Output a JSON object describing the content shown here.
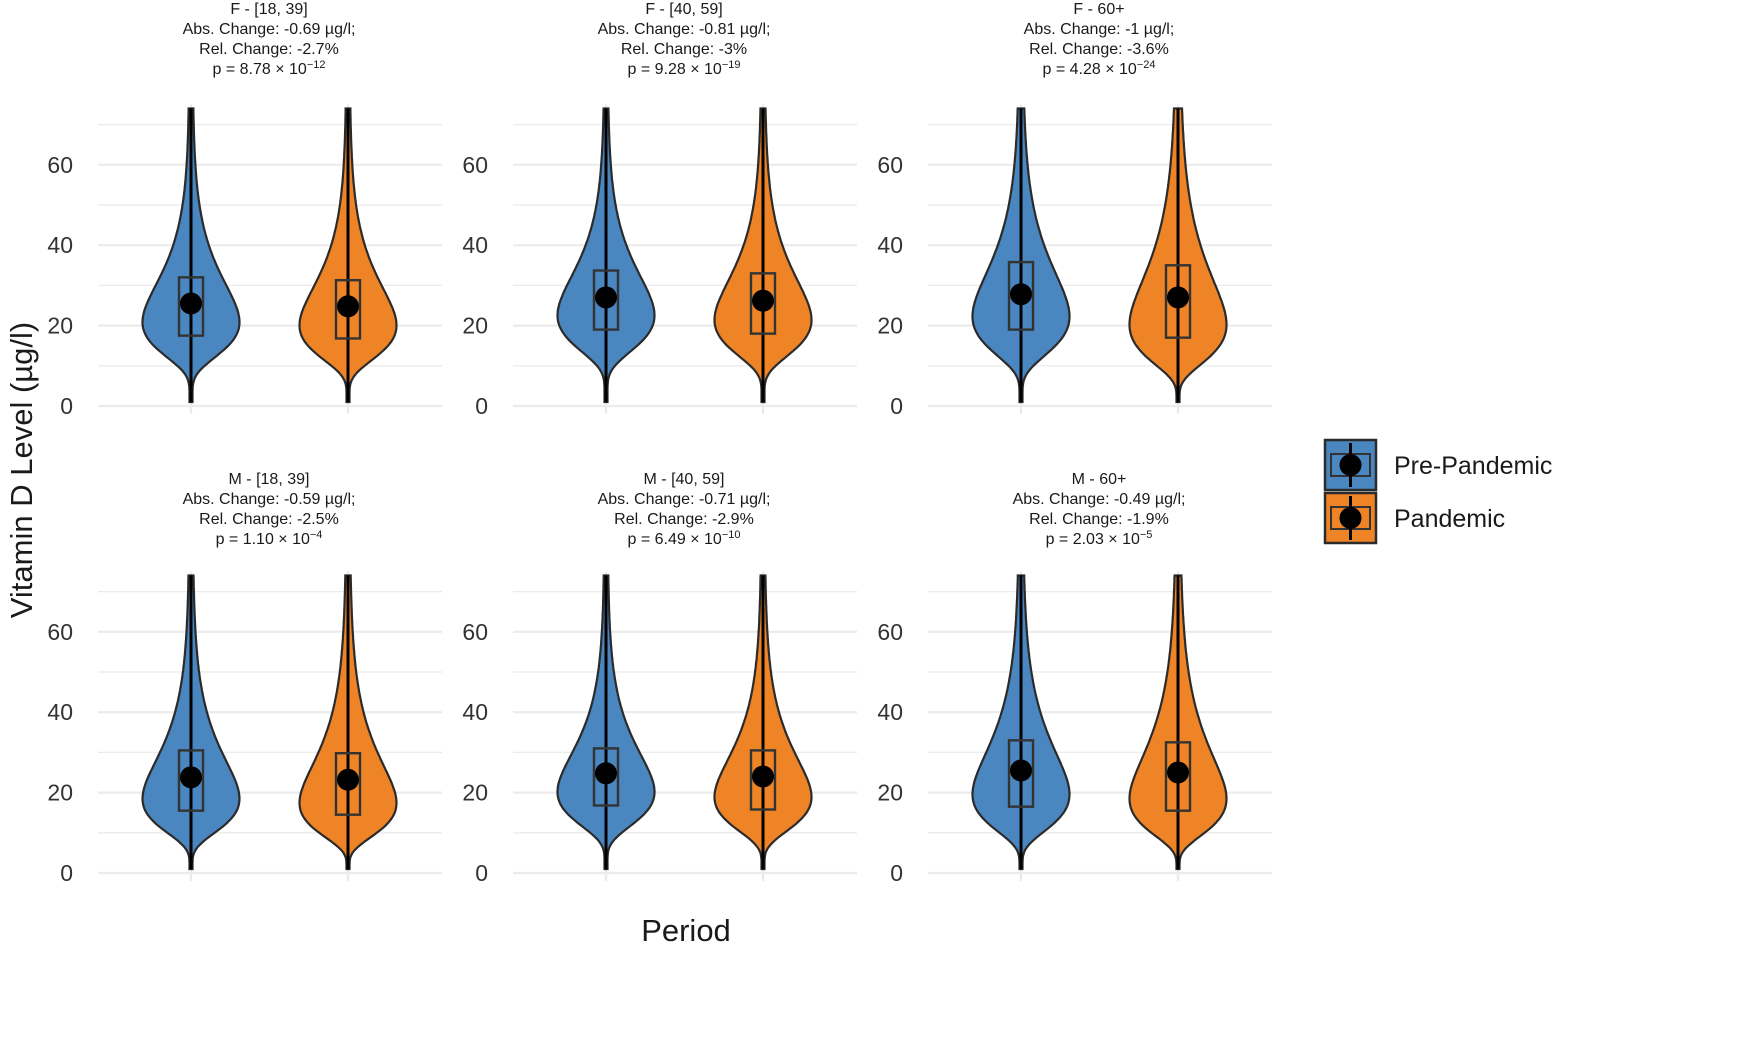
{
  "chart_data": {
    "type": "violin",
    "ylabel": "Vitamin D Level (µg/l)",
    "xlabel": "Period",
    "ylim": [
      0,
      75
    ],
    "y_ticks": [
      "0",
      "20",
      "40",
      "60"
    ],
    "grid": true,
    "legend_position": "right",
    "legend": [
      {
        "name": "Pre-Pandemic",
        "color": "#4A86BF"
      },
      {
        "name": "Pandemic",
        "color": "#EF8427"
      }
    ],
    "panels": [
      {
        "title": "F - [18, 39]",
        "abs": "Abs. Change: -0.69 µg/l;",
        "rel": "Rel. Change: -2.7%",
        "p": "p = 8.78 × 10",
        "p_exp": "−12",
        "groups": [
          {
            "period": "Pre-Pandemic",
            "center": 25.5,
            "q1": 17.5,
            "q3": 32,
            "min": 1,
            "max": 74
          },
          {
            "period": "Pandemic",
            "center": 24.8,
            "q1": 16.8,
            "q3": 31.3,
            "min": 1,
            "max": 74
          }
        ]
      },
      {
        "title": "F - [40, 59]",
        "abs": "Abs. Change: -0.81 µg/l;",
        "rel": "Rel. Change: -3%",
        "p": "p = 9.28 × 10",
        "p_exp": "−19",
        "groups": [
          {
            "period": "Pre-Pandemic",
            "center": 27,
            "q1": 19,
            "q3": 33.7,
            "min": 1,
            "max": 74
          },
          {
            "period": "Pandemic",
            "center": 26.2,
            "q1": 18,
            "q3": 33,
            "min": 1,
            "max": 74
          }
        ]
      },
      {
        "title": "F - 60+",
        "abs": "Abs. Change: -1 µg/l;",
        "rel": "Rel. Change: -3.6%",
        "p": "p = 4.28 × 10",
        "p_exp": "−24",
        "groups": [
          {
            "period": "Pre-Pandemic",
            "center": 27.8,
            "q1": 19,
            "q3": 35.8,
            "min": 1,
            "max": 74
          },
          {
            "period": "Pandemic",
            "center": 27,
            "q1": 17,
            "q3": 35,
            "min": 1,
            "max": 74
          }
        ]
      },
      {
        "title": "M - [18, 39]",
        "abs": "Abs. Change: -0.59 µg/l;",
        "rel": "Rel. Change: -2.5%",
        "p": "p = 1.10 × 10",
        "p_exp": "−4",
        "groups": [
          {
            "period": "Pre-Pandemic",
            "center": 23.8,
            "q1": 15.5,
            "q3": 30.5,
            "min": 1,
            "max": 74
          },
          {
            "period": "Pandemic",
            "center": 23.2,
            "q1": 14.5,
            "q3": 29.8,
            "min": 1,
            "max": 74
          }
        ]
      },
      {
        "title": "M - [40, 59]",
        "abs": "Abs. Change: -0.71 µg/l;",
        "rel": "Rel. Change: -2.9%",
        "p": "p = 6.49 × 10",
        "p_exp": "−10",
        "groups": [
          {
            "period": "Pre-Pandemic",
            "center": 24.8,
            "q1": 16.8,
            "q3": 31,
            "min": 1,
            "max": 74
          },
          {
            "period": "Pandemic",
            "center": 24,
            "q1": 15.8,
            "q3": 30.5,
            "min": 1,
            "max": 74
          }
        ]
      },
      {
        "title": "M - 60+",
        "abs": "Abs. Change: -0.49 µg/l;",
        "rel": "Rel. Change: -1.9%",
        "p": "p = 2.03 × 10",
        "p_exp": "−5",
        "groups": [
          {
            "period": "Pre-Pandemic",
            "center": 25.5,
            "q1": 16.5,
            "q3": 33,
            "min": 1,
            "max": 74
          },
          {
            "period": "Pandemic",
            "center": 25,
            "q1": 15.5,
            "q3": 32.5,
            "min": 1,
            "max": 74
          }
        ]
      }
    ]
  }
}
